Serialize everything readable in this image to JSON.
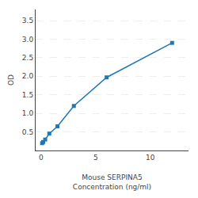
{
  "chart_data": {
    "type": "line",
    "x": [
      0.094,
      0.188,
      0.375,
      0.75,
      1.5,
      3,
      6,
      12
    ],
    "values": [
      0.197,
      0.228,
      0.295,
      0.455,
      0.65,
      1.2,
      1.97,
      2.9
    ],
    "marker": "square",
    "xlabel": "Mouse SERPINA5\nConcentration (ng/ml)",
    "ylabel": "OD",
    "xlim": [
      -0.5,
      13.5
    ],
    "ylim": [
      0,
      3.8
    ],
    "xticks": [
      0,
      5,
      10
    ],
    "yticks": [
      0.5,
      {
        "value": 1,
        "label": "1.0"
      },
      1.5,
      {
        "value": 2,
        "label": "2.0"
      },
      2.5,
      {
        "value": 3,
        "label": "3.0"
      },
      3.5
    ],
    "grid": "y"
  }
}
